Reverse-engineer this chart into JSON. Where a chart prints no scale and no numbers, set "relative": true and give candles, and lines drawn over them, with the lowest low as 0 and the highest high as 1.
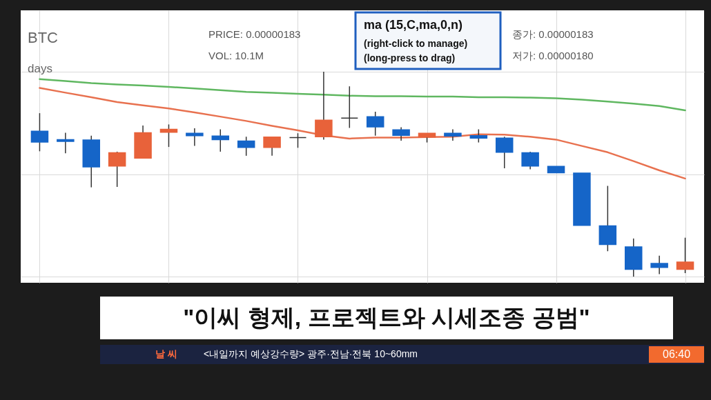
{
  "chart_data": {
    "type": "candlestick",
    "relative": true,
    "grid": true,
    "title": "\"이씨 형제, 프로젝트와 시세조종 공범\"",
    "categories": [
      null,
      null,
      null,
      null,
      null,
      null,
      null,
      null,
      null,
      null,
      null,
      null,
      null,
      null,
      null,
      null,
      null,
      null,
      null,
      null,
      null,
      null,
      null,
      null,
      null,
      null
    ],
    "ohlc": [
      [
        0.71,
        0.798,
        0.612,
        0.657
      ],
      [
        0.669,
        0.702,
        0.602,
        0.66
      ],
      [
        0.667,
        0.688,
        0.436,
        0.536
      ],
      [
        0.54,
        0.61,
        0.438,
        0.605
      ],
      [
        0.579,
        0.738,
        0.576,
        0.702
      ],
      [
        0.705,
        0.743,
        0.633,
        0.719
      ],
      [
        0.7,
        0.724,
        0.638,
        0.688
      ],
      [
        0.686,
        0.719,
        0.61,
        0.669
      ],
      [
        0.662,
        0.683,
        0.59,
        0.631
      ],
      [
        0.631,
        0.683,
        0.59,
        0.681
      ],
      [
        0.679,
        0.7,
        0.629,
        0.679
      ],
      [
        0.683,
        1.0,
        0.669,
        0.764
      ],
      [
        0.774,
        0.929,
        0.726,
        0.774
      ],
      [
        0.781,
        0.805,
        0.688,
        0.731
      ],
      [
        0.717,
        0.729,
        0.664,
        0.69
      ],
      [
        0.681,
        0.7,
        0.655,
        0.7
      ],
      [
        0.7,
        0.719,
        0.664,
        0.686
      ],
      [
        0.688,
        0.719,
        0.655,
        0.676
      ],
      [
        0.676,
        0.683,
        0.529,
        0.607
      ],
      [
        0.605,
        0.61,
        0.524,
        0.54
      ],
      [
        0.538,
        0.538,
        0.507,
        0.507
      ],
      [
        0.505,
        0.505,
        0.25,
        0.25
      ],
      [
        0.248,
        0.443,
        0.124,
        0.157
      ],
      [
        0.145,
        0.186,
        0.0,
        0.036
      ],
      [
        0.064,
        0.102,
        0.012,
        0.045
      ],
      [
        0.036,
        0.19,
        0.017,
        0.071
      ]
    ],
    "colors": [
      "#1565c8",
      "#1565c8",
      "#1565c8",
      "#e8623a",
      "#e8623a",
      "#e8623a",
      "#1565c8",
      "#1565c8",
      "#1565c8",
      "#e8623a",
      "#333333",
      "#e8623a",
      "#333333",
      "#1565c8",
      "#1565c8",
      "#e8623a",
      "#1565c8",
      "#1565c8",
      "#1565c8",
      "#1565c8",
      "#1565c8",
      "#1565c8",
      "#1565c8",
      "#1565c8",
      "#1565c8",
      "#e8623a"
    ],
    "series": [
      {
        "type": "line",
        "color": "#e8714f",
        "values": [
          0.921,
          0.898,
          0.876,
          0.852,
          0.836,
          0.821,
          0.802,
          0.781,
          0.76,
          0.736,
          0.714,
          0.69,
          0.674,
          0.679,
          0.679,
          0.681,
          0.683,
          0.695,
          0.693,
          0.683,
          0.669,
          0.638,
          0.607,
          0.564,
          0.519,
          0.479
        ]
      },
      {
        "type": "line",
        "color": "#5fb760",
        "values": [
          0.964,
          0.955,
          0.945,
          0.938,
          0.933,
          0.926,
          0.919,
          0.91,
          0.902,
          0.898,
          0.893,
          0.888,
          0.883,
          0.881,
          0.881,
          0.879,
          0.879,
          0.876,
          0.876,
          0.874,
          0.871,
          0.864,
          0.855,
          0.845,
          0.833,
          0.812
        ]
      }
    ],
    "annotations": [
      "BTC",
      "days",
      "PRICE:  0.00000183",
      "VOL:    10.1M",
      "ma (15,C,ma,0,n)",
      "(right-click to manage)",
      "(long-press to drag)",
      "종가:  0.00000183",
      "저가:  0.00000180",
      "날 씨",
      "<내일까지 예상강수량> 광주·전남·전북 10~60mm",
      "06:40"
    ]
  }
}
